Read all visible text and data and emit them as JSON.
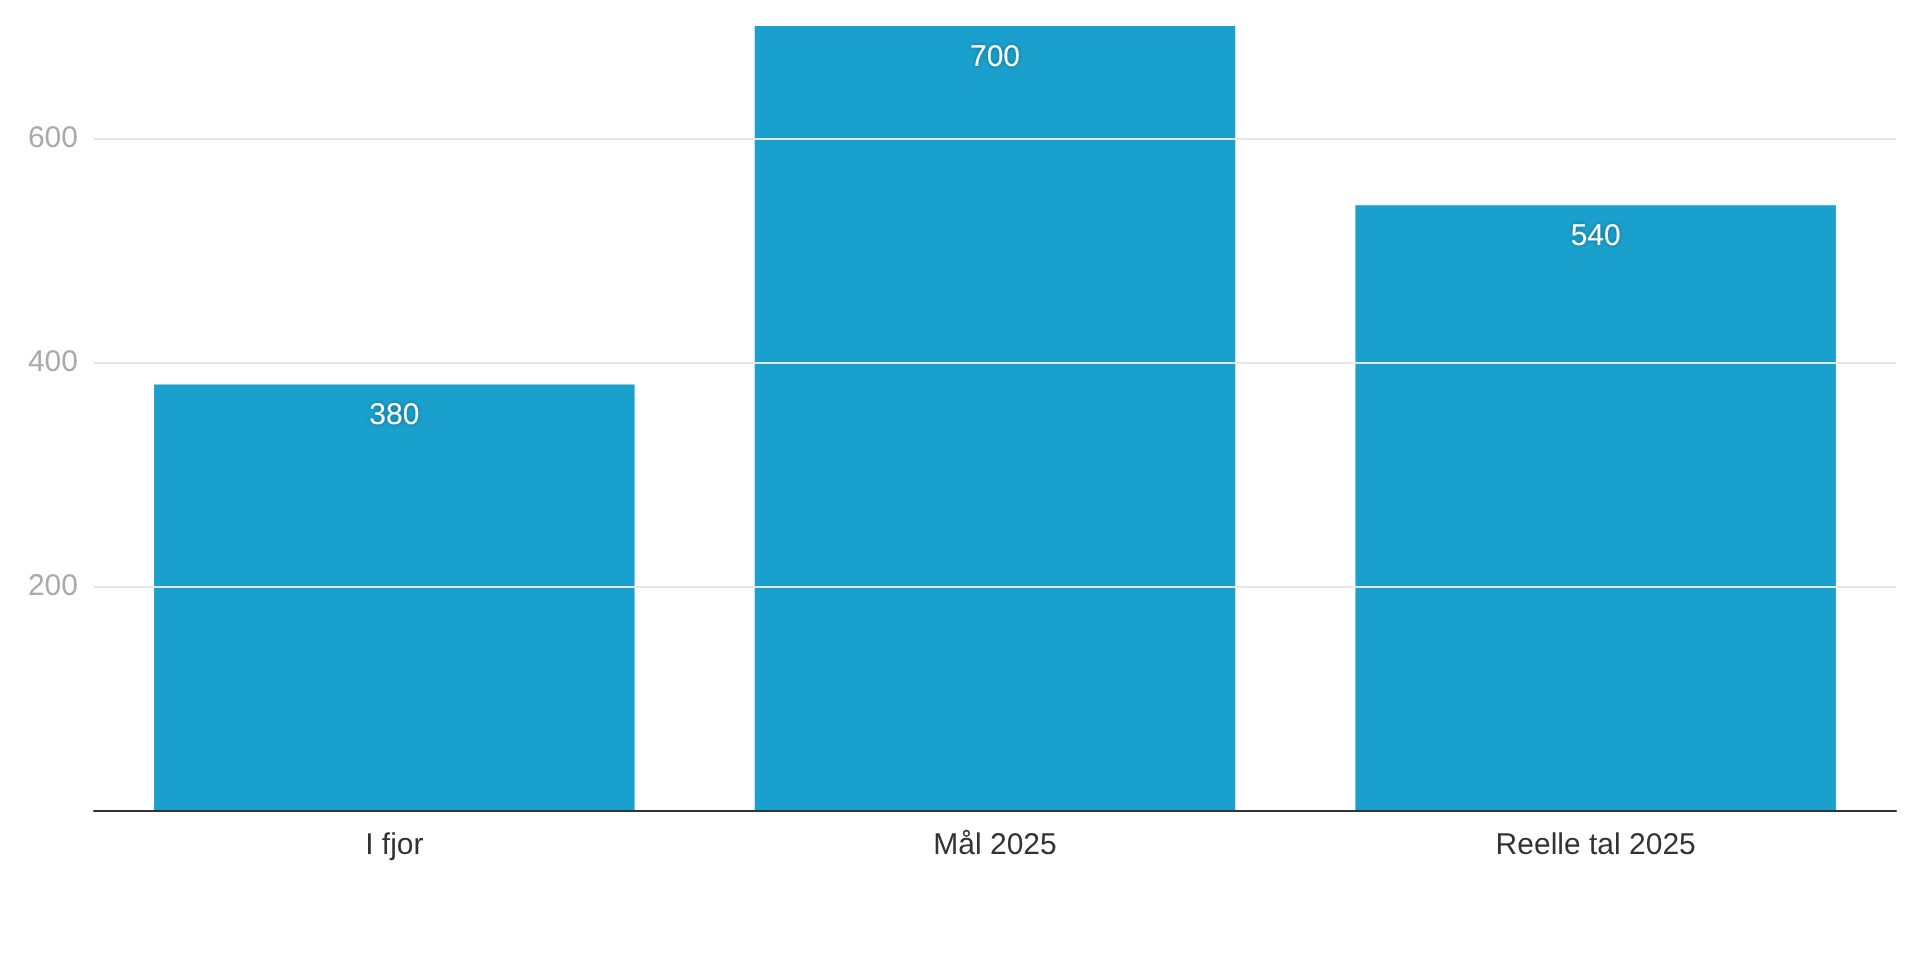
{
  "chart_data": {
    "type": "bar",
    "categories": [
      "I fjor",
      "Mål 2025",
      "Reelle tal 2025"
    ],
    "values": [
      380,
      700,
      540
    ],
    "color": "#1aa0cc",
    "ylim": [
      0,
      700
    ],
    "yticks": [
      200,
      400,
      600
    ],
    "grid": "y",
    "data_labels": true
  }
}
